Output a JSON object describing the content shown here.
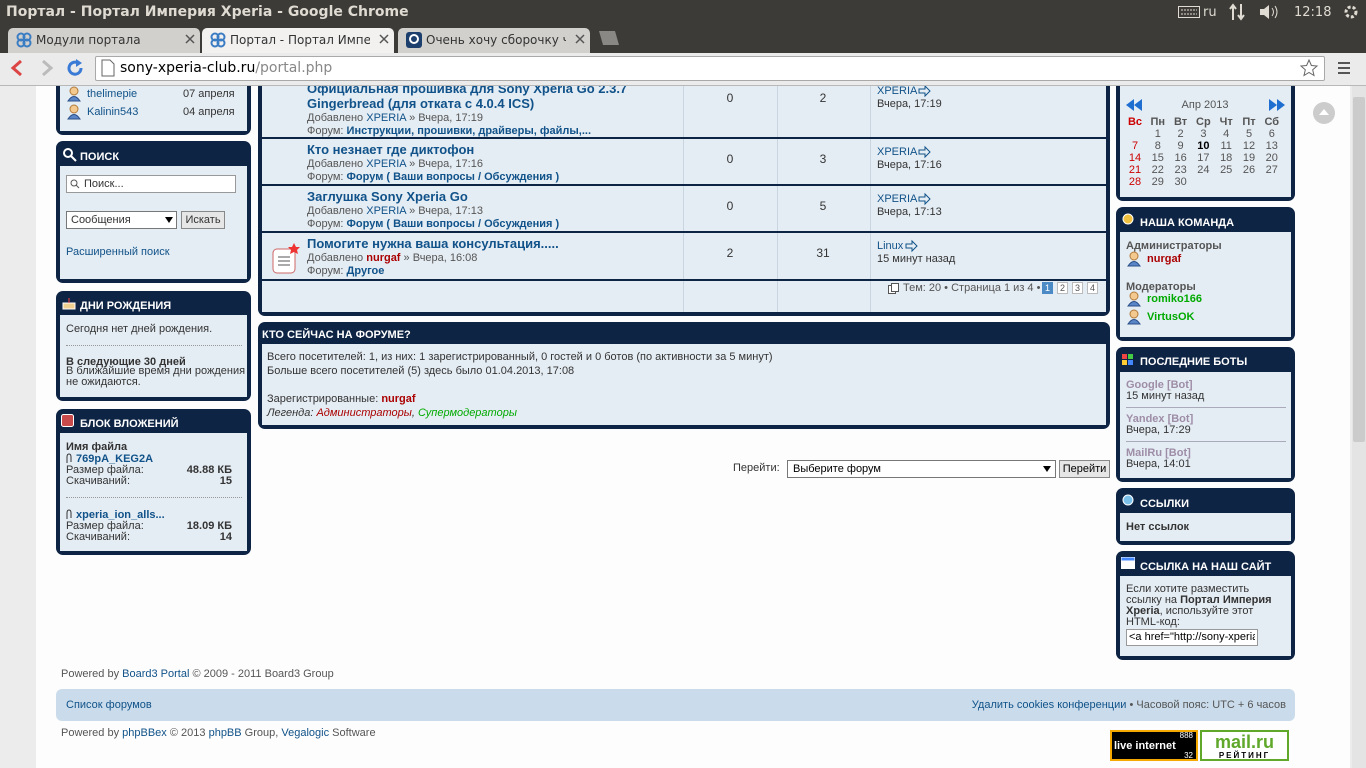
{
  "window": {
    "title": "Портал - Портал Империя Xperia - Google Chrome",
    "keyboard": "ru",
    "time": "12:18"
  },
  "tabs": [
    "Модули портала",
    "Портал - Портал Импери",
    "Очень хочу сборочку чуд"
  ],
  "address": {
    "host": "sony-xperia-club.ru",
    "path": "/portal.php"
  },
  "birthday_list": [
    {
      "name": "thelimepie",
      "date": "07 апреля"
    },
    {
      "name": "Kalinin543",
      "date": "04 апреля"
    }
  ],
  "search": {
    "title": "ПОИСК",
    "placeholder": "Поиск...",
    "scope": "Сообщения",
    "button": "Искать",
    "advanced": "Расширенный поиск"
  },
  "birthdays": {
    "title": "ДНИ РОЖДЕНИЯ",
    "today": "Сегодня нет дней рождения.",
    "upcoming_title": "В следующие 30 дней",
    "upcoming": "В ближайшие время дни рождения не ожидаются."
  },
  "attachments": {
    "title": "БЛОК ВЛОЖЕНИЙ",
    "file_label": "Имя файла",
    "size_label": "Размер файла:",
    "downloads_label": "Скачиваний:",
    "files": [
      {
        "name": "769pA_KEG2A",
        "size": "48.88 КБ",
        "downloads": 15
      },
      {
        "name": "xperia_ion_alls...",
        "size": "18.09 КБ",
        "downloads": 14
      }
    ]
  },
  "topics": {
    "added": "Добавлено",
    "forum_label": "Форум:",
    "rows": [
      {
        "title": "Официальная прошивка для Sony Xperia Go 2.3.7 Gingerbread (для отката с 4.0.4 ICS)",
        "author": "XPERIA",
        "time": "» Вчера, 17:19",
        "forum": "Инструкции, прошивки, драйверы, файлы,...",
        "replies": 0,
        "views": 2,
        "last_author": "XPERIA",
        "last_time": "Вчера, 17:19"
      },
      {
        "title": "Кто незнает где диктофон",
        "author": "XPERIA",
        "time": "» Вчера, 17:16",
        "forum": "Форум ( Ваши вопросы / Обсуждения )",
        "replies": 0,
        "views": 3,
        "last_author": "XPERIA",
        "last_time": "Вчера, 17:16"
      },
      {
        "title": "Заглушка Sony Xperia Go",
        "author": "XPERIA",
        "time": "» Вчера, 17:13",
        "forum": "Форум ( Ваши вопросы / Обсуждения )",
        "replies": 0,
        "views": 5,
        "last_author": "XPERIA",
        "last_time": "Вчера, 17:13"
      },
      {
        "title": "Помогите нужна ваша консультация.....",
        "author": "nurgaf",
        "time": "» Вчера, 16:08",
        "forum": "Другое",
        "replies": 2,
        "views": 31,
        "last_author": "Linux",
        "last_time": "15 минут назад"
      }
    ],
    "summary": "Тем: 20 • Страница 1 из 4 •",
    "pages": [
      1,
      2,
      3,
      4
    ],
    "current_page": 1
  },
  "online": {
    "title": "КТО СЕЙЧАС НА ФОРУМЕ?",
    "total": "Всего посетителей: 1, из них: 1 зарегистрированный, 0 гостей и 0 ботов (по активности за 5 минут)",
    "record": "Больше всего посетителей (5) здесь было 01.04.2013, 17:08",
    "registered_label": "Зарегистрированные:",
    "registered": "nurgaf",
    "legend_label": "Легенда:",
    "legend": [
      "Администраторы",
      "Супермодераторы"
    ],
    "legend_separator": ","
  },
  "jump": {
    "label": "Перейти:",
    "select": "Выберите форум",
    "button": "Перейти"
  },
  "calendar": {
    "month": "Апр 2013",
    "weekdays": [
      "Вс",
      "Пн",
      "Вт",
      "Ср",
      "Чт",
      "Пт",
      "Сб"
    ],
    "weeks": [
      [
        null,
        1,
        2,
        3,
        4,
        5,
        6
      ],
      [
        7,
        8,
        9,
        10,
        11,
        12,
        13
      ],
      [
        14,
        15,
        16,
        17,
        18,
        19,
        20
      ],
      [
        21,
        22,
        23,
        24,
        25,
        26,
        27
      ],
      [
        28,
        29,
        30,
        null,
        null,
        null,
        null
      ]
    ],
    "today": 10
  },
  "team": {
    "title": "НАША КОМАНДА",
    "admins_label": "Администраторы",
    "admins": [
      "nurgaf"
    ],
    "mods_label": "Модераторы",
    "mods": [
      "romiko166",
      "VirtusOK"
    ]
  },
  "bots": {
    "title": "ПОСЛЕДНИЕ БОТЫ",
    "list": [
      {
        "name": "Google [Bot]",
        "time": "15 минут назад"
      },
      {
        "name": "Yandex [Bot]",
        "time": "Вчера, 17:29"
      },
      {
        "name": "MailRu [Bot]",
        "time": "Вчера, 14:01"
      }
    ]
  },
  "links": {
    "title": "ССЫЛКИ",
    "empty": "Нет ссылок"
  },
  "link_to_us": {
    "title": "ССЫЛКА НА НАШ САЙТ",
    "text_before": "Если хотите разместить ссылку на",
    "site": "Портал Империя Xperia",
    "text_after": ", используйте этот HTML-код:",
    "code": "<a href=\"http://sony-xperia-"
  },
  "footer": {
    "portal": {
      "prefix": "Powered by",
      "link": "Board3 Portal",
      "suffix": "© 2009 - 2011 Board3 Group"
    },
    "nav": {
      "index": "Список форумов",
      "cookies": "Удалить cookies конференции",
      "timezone": "• Часовой пояс: UTC + 6 часов"
    },
    "powered": [
      {
        "text": "Powered by",
        "link": false
      },
      {
        "text": "phpBBex",
        "link": true
      },
      {
        "text": "© 2013",
        "link": false
      },
      {
        "text": "phpBB",
        "link": true
      },
      {
        "text": "Group,",
        "link": false
      },
      {
        "text": "Vegalogic",
        "link": true
      },
      {
        "text": "Software",
        "link": false
      }
    ],
    "liveinternet": {
      "brand": "live internet",
      "top": "888",
      "bottom": "32"
    },
    "mailru": {
      "brand": "mail.ru",
      "sub": "РЕЙТИНГ"
    }
  }
}
